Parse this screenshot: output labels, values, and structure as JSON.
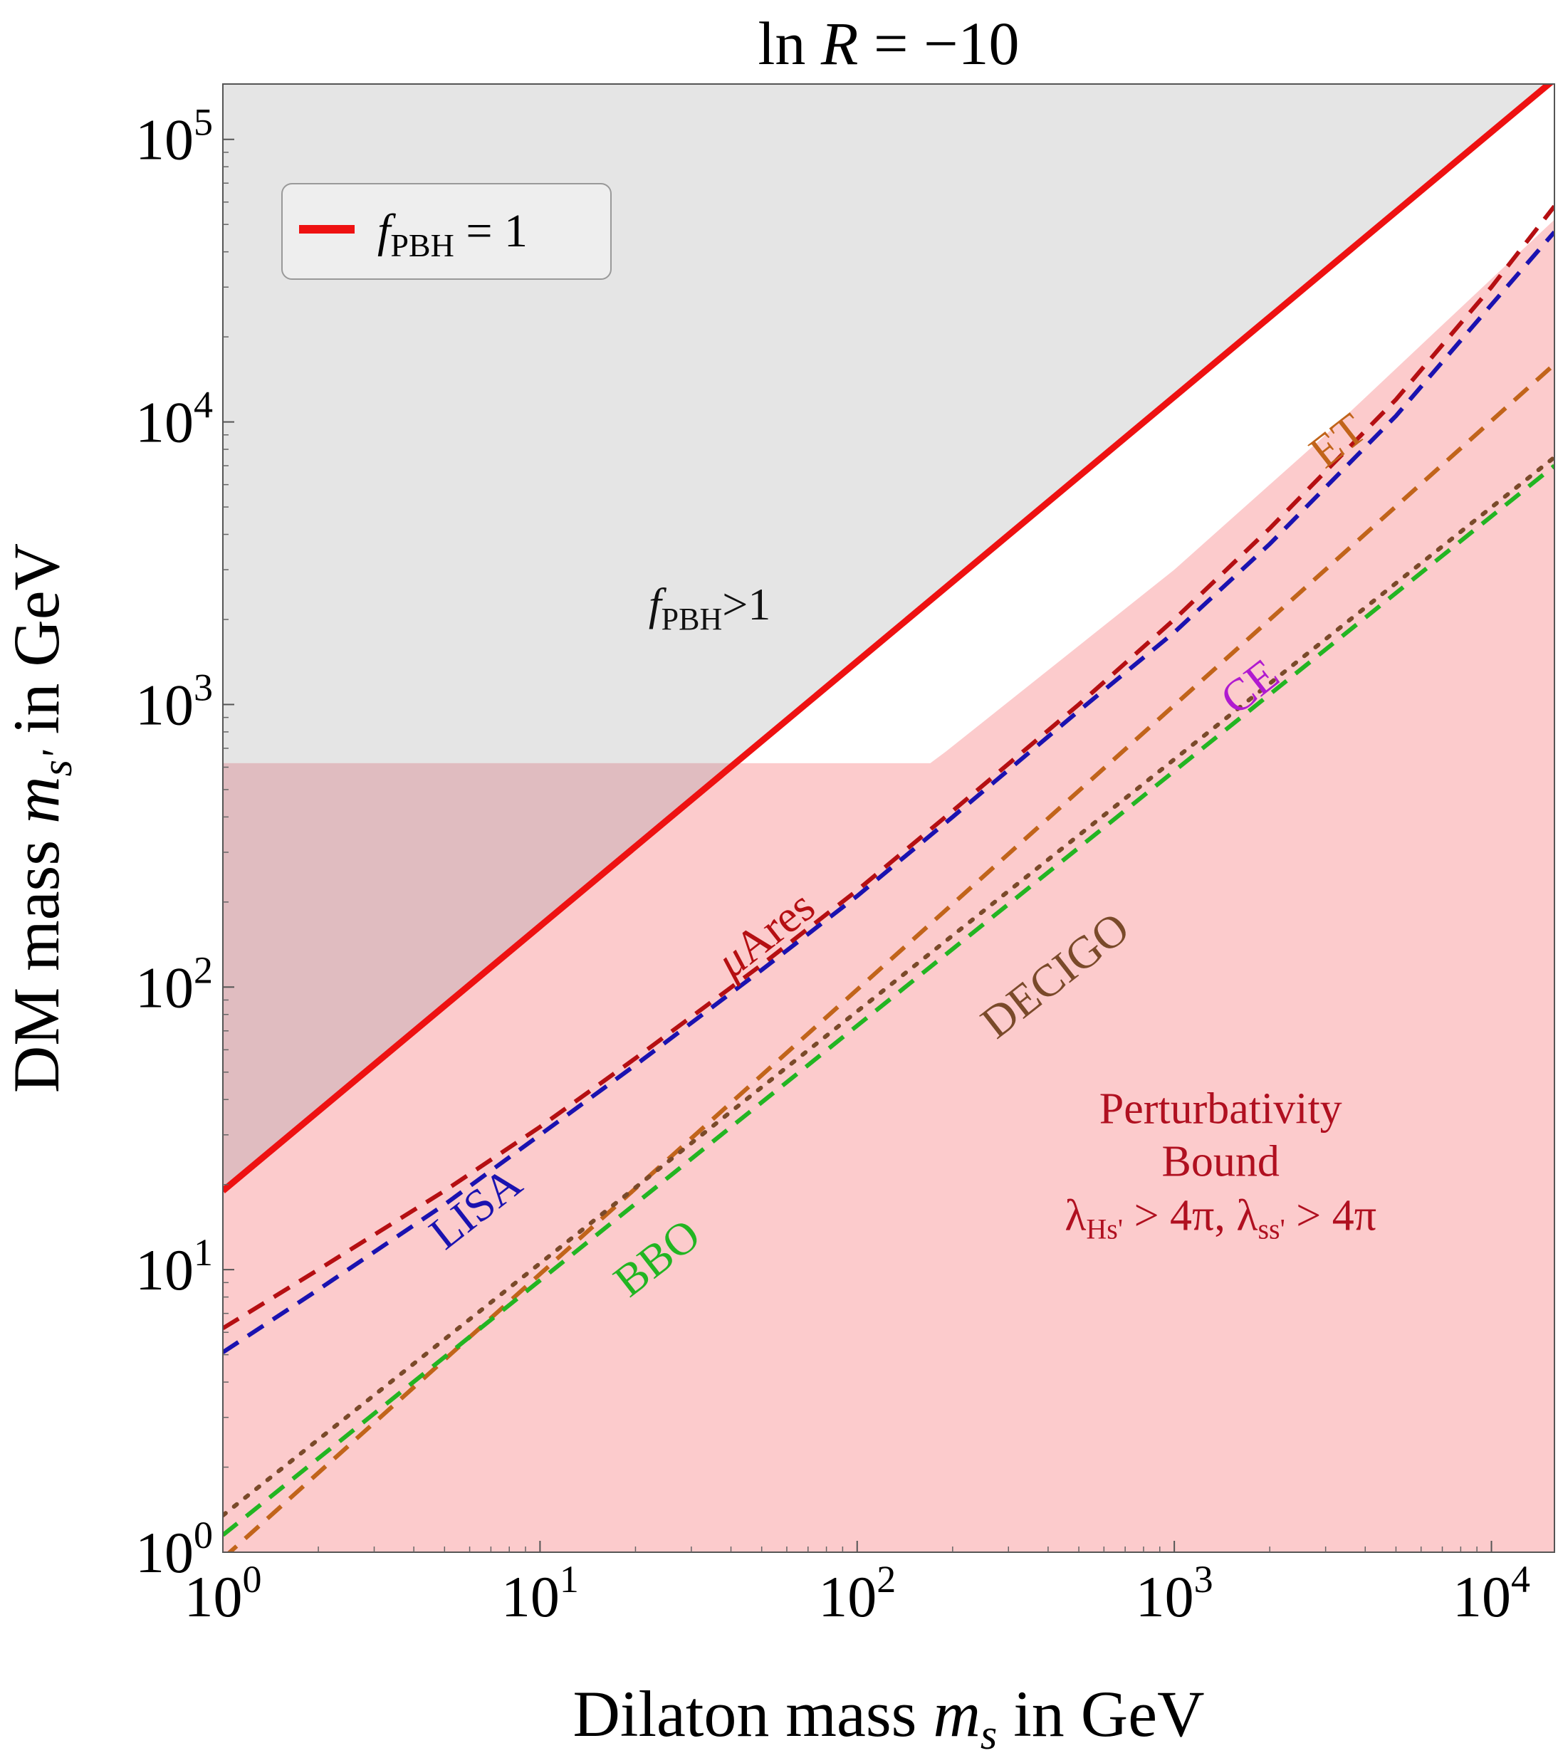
{
  "chart_data": {
    "type": "line",
    "title": "ln R = −10",
    "title_parts": {
      "prefix": "ln ",
      "var": "R",
      "suffix": " = −10"
    },
    "xlabel": "Dilaton mass m_s in GeV",
    "xlabel_parts": {
      "text": "Dilaton mass ",
      "var": "m",
      "sub": "s",
      "tail": " in GeV"
    },
    "ylabel": "DM mass m_s' in GeV",
    "ylabel_parts": {
      "text": "DM mass ",
      "var": "m",
      "sub": "s'",
      "tail": " in GeV"
    },
    "xscale": "log",
    "yscale": "log",
    "xlim": [
      1,
      15800
    ],
    "ylim": [
      1,
      157000
    ],
    "xticks": [
      {
        "value": 1,
        "base": "10",
        "exp": "0"
      },
      {
        "value": 10,
        "base": "10",
        "exp": "1"
      },
      {
        "value": 100,
        "base": "10",
        "exp": "2"
      },
      {
        "value": 1000,
        "base": "10",
        "exp": "3"
      },
      {
        "value": 10000,
        "base": "10",
        "exp": "4"
      }
    ],
    "yticks": [
      {
        "value": 1,
        "base": "10",
        "exp": "0"
      },
      {
        "value": 10,
        "base": "10",
        "exp": "1"
      },
      {
        "value": 100,
        "base": "10",
        "exp": "2"
      },
      {
        "value": 1000,
        "base": "10",
        "exp": "3"
      },
      {
        "value": 10000,
        "base": "10",
        "exp": "4"
      },
      {
        "value": 100000,
        "base": "10",
        "exp": "5"
      }
    ],
    "grid": false,
    "legend": {
      "position": "top-left",
      "entries": [
        {
          "label_var": "f",
          "label_sub": "PBH",
          "label_tail": " = 1",
          "color": "#ee1111"
        }
      ]
    },
    "regions": [
      {
        "name": "fPBH-greater-than-1",
        "color": "#e5e5e5",
        "label": {
          "var": "f",
          "sub": "PBH",
          "tail": ">1",
          "at": [
            22,
            2000
          ],
          "color": "#111111"
        }
      },
      {
        "name": "perturbativity-bound",
        "color": "#fccbcc",
        "boundary": [
          [
            1,
            620
          ],
          [
            170,
            620
          ],
          [
            190,
            680
          ],
          [
            1000,
            3000
          ],
          [
            3000,
            9000
          ],
          [
            15800,
            52000
          ]
        ],
        "label_lines": [
          "Perturbativity",
          "Bound"
        ],
        "label_formula": {
          "sym1": "λ",
          "sub1": "Hs'",
          "rel1": " > 4π, ",
          "sym2": "λ",
          "sub2": "ss'",
          "rel2": " > 4π"
        },
        "label_at": [
          1400,
          22
        ],
        "color_label": "#b01020"
      },
      {
        "name": "overlap",
        "color": "#e0bcc0"
      }
    ],
    "series": [
      {
        "name": "fPBH = 1",
        "style": "solid",
        "color": "#ee1111",
        "x": [
          1,
          15800
        ],
        "y": [
          19,
          163000
        ]
      },
      {
        "name": "μAres",
        "style": "dashed",
        "color": "#b50f12",
        "x": [
          1,
          2,
          5,
          10,
          20,
          50,
          100,
          200,
          500,
          1000,
          2000,
          5000,
          10000,
          15800
        ],
        "y": [
          6.2,
          10,
          19,
          32,
          56,
          120,
          220,
          420,
          1000,
          2000,
          4200,
          12000,
          30000,
          58000
        ],
        "label": "μAres",
        "label_at": [
          55,
          140
        ],
        "label_angle": -38
      },
      {
        "name": "LISA",
        "style": "dashed",
        "color": "#1a12b0",
        "x": [
          1,
          2,
          5,
          10,
          20,
          50,
          100,
          200,
          500,
          1000,
          2000,
          5000,
          10000,
          15800
        ],
        "y": [
          5.1,
          8.5,
          17,
          30,
          53,
          115,
          210,
          400,
          950,
          1800,
          3700,
          10500,
          26000,
          47000
        ],
        "label": "LISA",
        "label_at": [
          6.7,
          15
        ],
        "label_angle": -38
      },
      {
        "name": "ET",
        "style": "dashed",
        "color": "#c1641a",
        "x": [
          1,
          15800
        ],
        "y": [
          0.95,
          16000
        ],
        "label": "ET",
        "label_at": [
          3500,
          7800
        ],
        "label_angle": -38
      },
      {
        "name": "DECIGO",
        "style": "dotted",
        "color": "#7a4a2a",
        "x": [
          1,
          15800
        ],
        "y": [
          1.35,
          7500
        ],
        "label": "DECIGO",
        "label_at": [
          450,
          100
        ],
        "label_angle": -38
      },
      {
        "name": "BBO",
        "style": "dashed",
        "color": "#22b522",
        "x": [
          1,
          15800
        ],
        "y": [
          1.15,
          7000
        ],
        "label": "BBO",
        "label_at": [
          25,
          10
        ],
        "label_angle": -38
      },
      {
        "name": "CE",
        "style": "none",
        "color": "#b01ad0",
        "label": "CE",
        "label_at": [
          1850,
          1050
        ],
        "label_angle": -38
      }
    ]
  }
}
